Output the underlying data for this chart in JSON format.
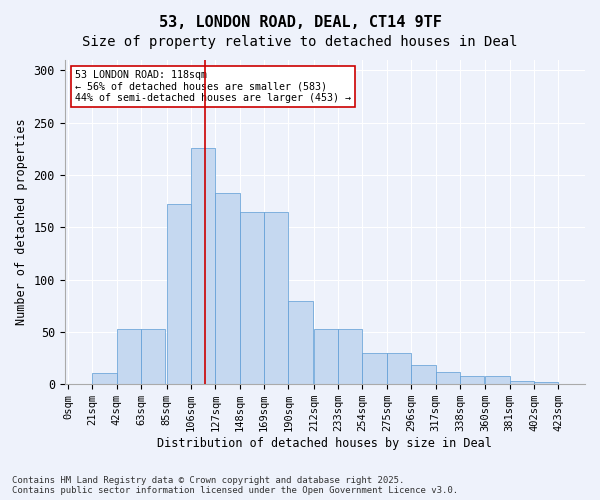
{
  "title_line1": "53, LONDON ROAD, DEAL, CT14 9TF",
  "title_line2": "Size of property relative to detached houses in Deal",
  "xlabel": "Distribution of detached houses by size in Deal",
  "ylabel": "Number of detached properties",
  "bar_color": "#c5d8f0",
  "bar_edge_color": "#5b9bd5",
  "bar_heights": [
    0,
    11,
    53,
    53,
    172,
    226,
    183,
    165,
    165,
    80,
    53,
    53,
    30,
    30,
    18,
    12,
    8,
    8,
    3,
    2
  ],
  "bin_edges": [
    0,
    21,
    42,
    63,
    85,
    106,
    127,
    148,
    169,
    190,
    212,
    233,
    254,
    275,
    296,
    317,
    338,
    360,
    381,
    402,
    423
  ],
  "tick_labels": [
    "0sqm",
    "21sqm",
    "42sqm",
    "63sqm",
    "85sqm",
    "106sqm",
    "127sqm",
    "148sqm",
    "169sqm",
    "190sqm",
    "212sqm",
    "233sqm",
    "254sqm",
    "275sqm",
    "296sqm",
    "317sqm",
    "338sqm",
    "360sqm",
    "381sqm",
    "402sqm",
    "423sqm"
  ],
  "vline_x": 118,
  "vline_color": "#cc0000",
  "ylim": [
    0,
    310
  ],
  "annotation_title": "53 LONDON ROAD: 118sqm",
  "annotation_line1": "← 56% of detached houses are smaller (583)",
  "annotation_line2": "44% of semi-detached houses are larger (453) →",
  "annotation_box_color": "#ffffff",
  "annotation_box_edge": "#cc0000",
  "footnote_line1": "Contains HM Land Registry data © Crown copyright and database right 2025.",
  "footnote_line2": "Contains public sector information licensed under the Open Government Licence v3.0.",
  "background_color": "#eef2fb",
  "grid_color": "#ffffff",
  "title_fontsize": 11,
  "axis_label_fontsize": 8.5,
  "tick_fontsize": 7.5,
  "footnote_fontsize": 6.5
}
